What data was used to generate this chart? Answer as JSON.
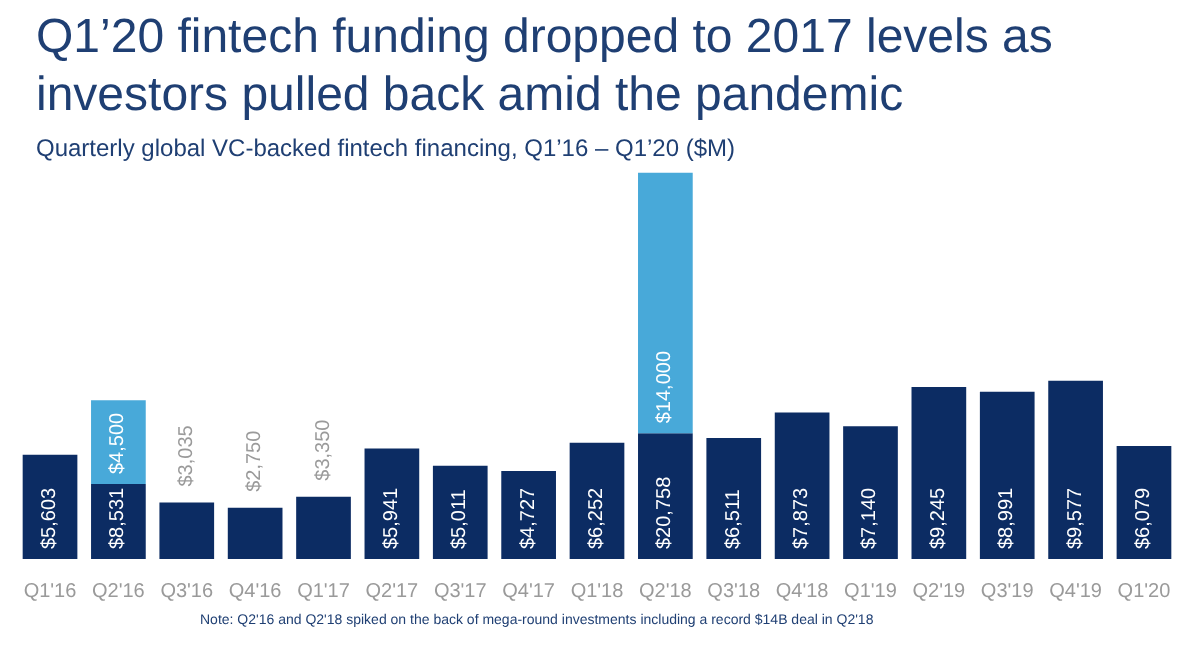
{
  "chart_data": {
    "type": "bar",
    "stacked": true,
    "title": "Q1’20 fintech funding dropped to 2017 levels as investors pulled back amid the pandemic",
    "subtitle": "Quarterly global VC-backed fintech financing, Q1’16 – Q1’20 ($M)",
    "categories": [
      "Q1'16",
      "Q2'16",
      "Q3'16",
      "Q4'16",
      "Q1'17",
      "Q2'17",
      "Q3'17",
      "Q4'17",
      "Q1'18",
      "Q2'18",
      "Q3'18",
      "Q4'18",
      "Q1'19",
      "Q2'19",
      "Q3'19",
      "Q4'19",
      "Q1'20"
    ],
    "series": [
      {
        "color": "#0c2c63",
        "values": [
          5603,
          4031,
          3035,
          2750,
          3350,
          5941,
          5011,
          4727,
          6252,
          6758,
          6511,
          7873,
          7140,
          9245,
          8991,
          9577,
          6079
        ]
      },
      {
        "color": "#48a9d9",
        "values": [
          null,
          4500,
          null,
          null,
          null,
          null,
          null,
          null,
          null,
          14000,
          null,
          null,
          null,
          null,
          null,
          null,
          null
        ],
        "value_labels": [
          null,
          "$4,500",
          null,
          null,
          null,
          null,
          null,
          null,
          null,
          "$14,000",
          null,
          null,
          null,
          null,
          null,
          null,
          null
        ]
      }
    ],
    "totals": [
      "$5,603",
      "$8,531",
      "$3,035",
      "$2,750",
      "$3,350",
      "$5,941",
      "$5,011",
      "$4,727",
      "$6,252",
      "$20,758",
      "$6,511",
      "$7,873",
      "$7,140",
      "$9,245",
      "$8,991",
      "$9,577",
      "$6,079"
    ],
    "annotations": [
      "Note: Q2'16 and Q2'18 spiked on the back of mega-round investments including a record $14B deal in Q2'18"
    ]
  }
}
